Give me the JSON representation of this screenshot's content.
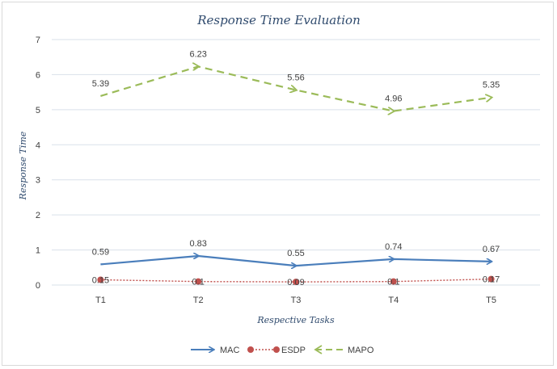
{
  "chart_data": {
    "type": "line",
    "title": "Response Time Evaluation",
    "xlabel": "Respective Tasks",
    "ylabel": "Response Time",
    "categories": [
      "T1",
      "T2",
      "T3",
      "T4",
      "T5"
    ],
    "ylim": [
      0,
      7
    ],
    "yticks": [
      0,
      1,
      2,
      3,
      4,
      5,
      6,
      7
    ],
    "grid": true,
    "legend": "bottom",
    "series": [
      {
        "name": "MAC",
        "values": [
          0.59,
          0.83,
          0.55,
          0.74,
          0.67
        ],
        "labels": [
          "0.59",
          "0.83",
          "0.55",
          "0.74",
          "0.67"
        ],
        "color": "#4a7ebb",
        "style": "solid-arrow"
      },
      {
        "name": "ESDP",
        "values": [
          0.15,
          0.1,
          0.09,
          0.1,
          0.17
        ],
        "labels": [
          "0.15",
          "0.1",
          "0.09",
          "0.1",
          "0.17"
        ],
        "color": "#c0504d",
        "style": "dotted-circle"
      },
      {
        "name": "MAPO",
        "values": [
          5.39,
          6.23,
          5.56,
          4.96,
          5.35
        ],
        "labels": [
          "5.39",
          "6.23",
          "5.56",
          "4.96",
          "5.35"
        ],
        "color": "#9bbb59",
        "style": "dashed-arrow"
      }
    ]
  }
}
